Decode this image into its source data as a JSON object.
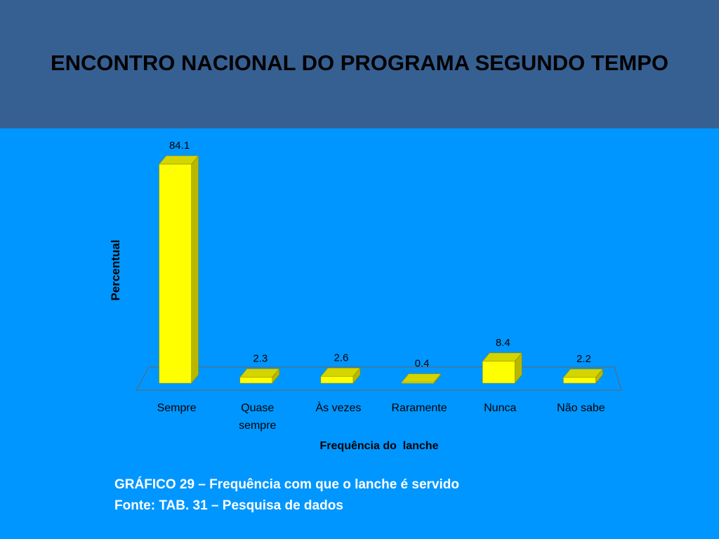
{
  "header": {
    "title": "ENCONTRO NACIONAL DO PROGRAMA SEGUNDO TEMPO",
    "background": "#366092"
  },
  "slide": {
    "background": "#0096ff"
  },
  "chart_data": {
    "type": "bar",
    "style": "3d",
    "title": "",
    "categories": [
      "Sempre",
      "Quase sempre",
      "Às vezes",
      "Raramente",
      "Nunca",
      "Não sabe"
    ],
    "category_lines": [
      [
        "Sempre"
      ],
      [
        "Quase",
        "sempre"
      ],
      [
        "Às vezes"
      ],
      [
        "Raramente"
      ],
      [
        "Nunca"
      ],
      [
        "Não sabe"
      ]
    ],
    "values": [
      84.1,
      2.3,
      2.6,
      0.4,
      8.4,
      2.2
    ],
    "value_labels": [
      "84.1",
      "2.3",
      "2.6",
      "0.4",
      "8.4",
      "2.2"
    ],
    "xlabel": "Frequência do  lanche",
    "ylabel": "Percentual",
    "ylim": [
      0,
      84.1
    ],
    "grid": false,
    "legend": "none",
    "bar_color": "#ffff00",
    "bar_side_color": "#b8b800",
    "bar_top_color": "#d4d400"
  },
  "caption": {
    "line1": "GRÁFICO 29 – Frequência com que o lanche é servido",
    "line2": "Fonte: TAB. 31 – Pesquisa de dados"
  }
}
